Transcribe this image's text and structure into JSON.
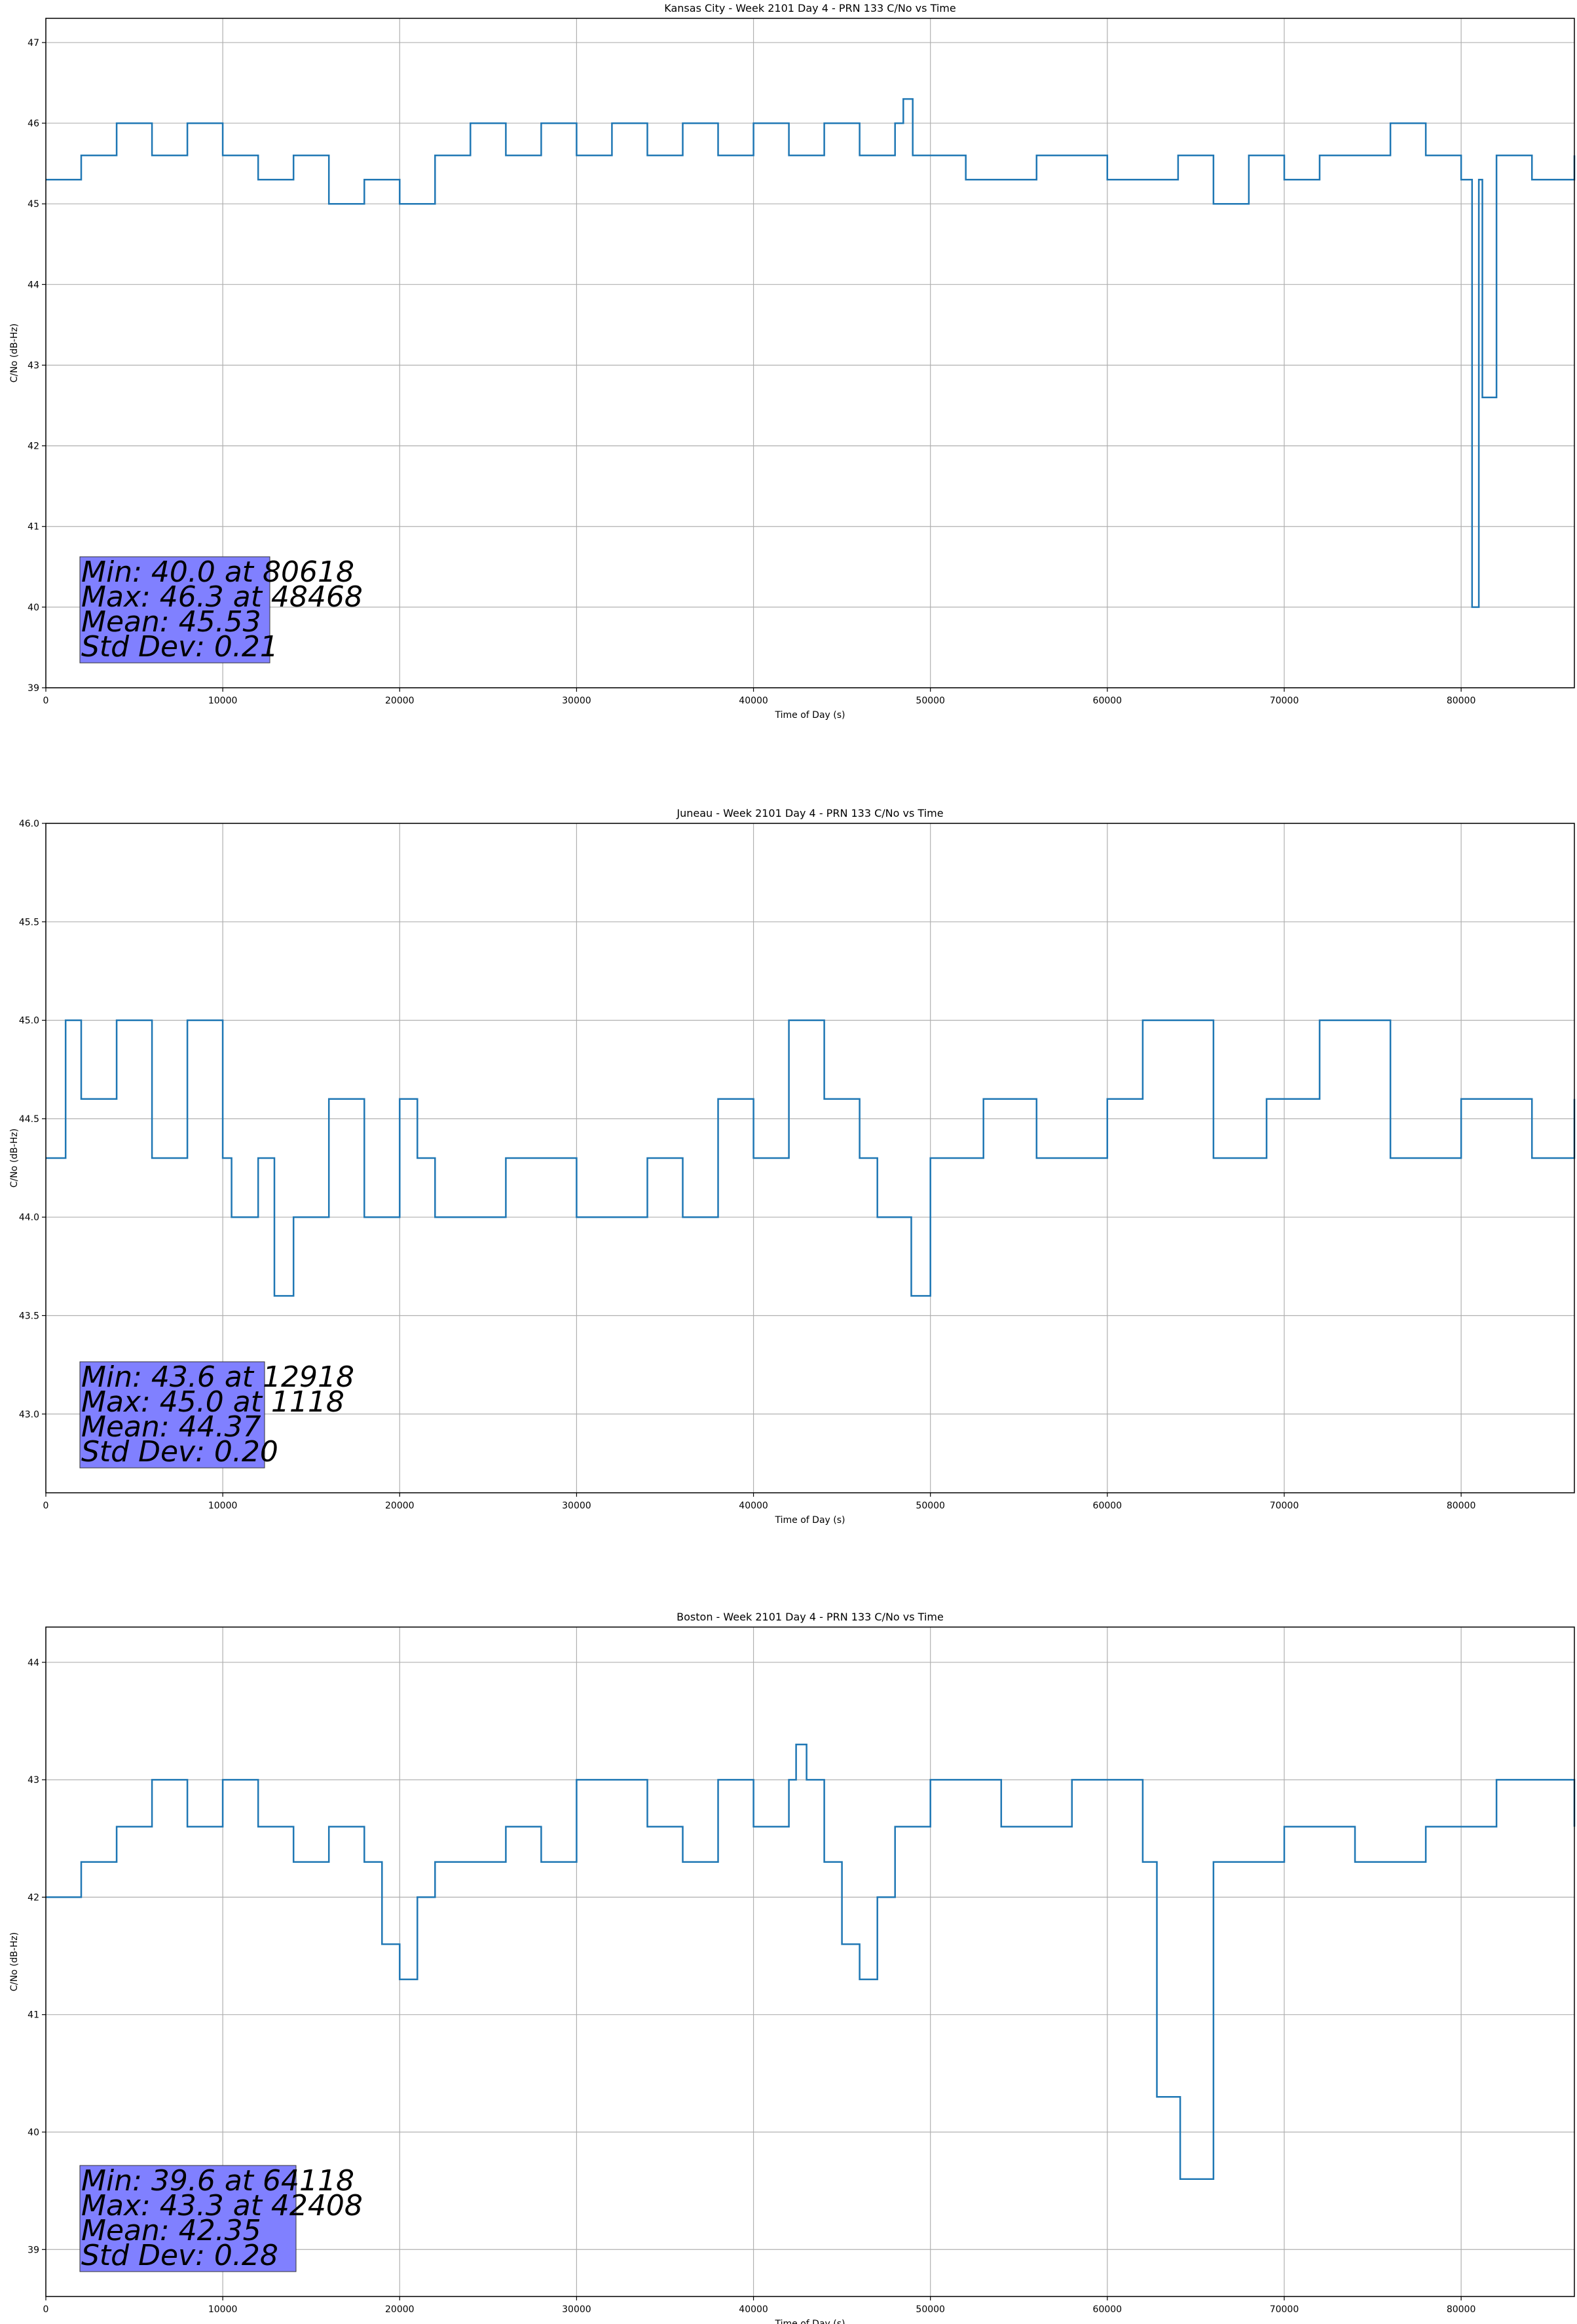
{
  "figure": {
    "panels": [
      {
        "title": "Kansas City - Week 2101 Day 4 - PRN 133 C/No vs Time",
        "xlabel": "Time of Day (s)",
        "ylabel": "C/No (dB-Hz)",
        "stats": [
          "Min: 40.0 at 80618",
          "Max: 46.3 at 48468",
          "Mean: 45.53",
          "Std Dev: 0.21"
        ]
      },
      {
        "title": "Juneau - Week 2101 Day 4 - PRN 133 C/No vs Time",
        "xlabel": "Time of Day (s)",
        "ylabel": "C/No (dB-Hz)",
        "stats": [
          "Min: 43.6 at 12918",
          "Max: 45.0 at 1118",
          "Mean: 44.37",
          "Std Dev: 0.20"
        ]
      },
      {
        "title": "Boston - Week 2101 Day 4 - PRN 133 C/No vs Time",
        "xlabel": "Time of Day (s)",
        "ylabel": "C/No (dB-Hz)",
        "stats": [
          "Min: 39.6 at 64118",
          "Max: 43.3 at 42408",
          "Mean: 42.35",
          "Std Dev: 0.28"
        ]
      }
    ]
  },
  "chart_data": [
    {
      "type": "line",
      "title": "Kansas City - Week 2101 Day 4 - PRN 133 C/No vs Time",
      "xlabel": "Time of Day (s)",
      "ylabel": "C/No (dB-Hz)",
      "xlim": [
        0,
        86400
      ],
      "ylim": [
        39,
        47.3
      ],
      "xticks": [
        0,
        10000,
        20000,
        30000,
        40000,
        50000,
        60000,
        70000,
        80000
      ],
      "yticks": [
        39,
        40,
        41,
        42,
        43,
        44,
        45,
        46,
        47
      ],
      "ytick_decimals": 0,
      "grid": true,
      "line_color": "#1f77b4",
      "stats_box_color": "#8080ff",
      "series": [
        {
          "x": [
            0,
            2000,
            4000,
            6000,
            8000,
            10000,
            12000,
            14000,
            16000,
            18000,
            20000,
            22000,
            24000,
            26000,
            28000,
            30000,
            32000,
            34000,
            36000,
            38000,
            40000,
            42000,
            44000,
            46000,
            48000,
            48468,
            49000,
            52000,
            56000,
            60000,
            64000,
            66000,
            68000,
            70000,
            72000,
            76000,
            78000,
            80000,
            80618,
            81000,
            81200,
            82000,
            84000,
            86400
          ],
          "y": [
            45.3,
            45.6,
            46.0,
            45.6,
            46.0,
            45.6,
            45.3,
            45.6,
            45.0,
            45.3,
            45.0,
            45.6,
            46.0,
            45.6,
            46.0,
            45.6,
            46.0,
            45.6,
            46.0,
            45.6,
            46.0,
            45.6,
            46.0,
            45.6,
            46.0,
            46.3,
            45.6,
            45.3,
            45.6,
            45.3,
            45.6,
            45.0,
            45.6,
            45.3,
            45.6,
            46.0,
            45.6,
            45.3,
            40.0,
            45.3,
            42.6,
            45.6,
            45.3,
            45.6
          ]
        }
      ]
    },
    {
      "type": "line",
      "title": "Juneau - Week 2101 Day 4 - PRN 133 C/No vs Time",
      "xlabel": "Time of Day (s)",
      "ylabel": "C/No (dB-Hz)",
      "xlim": [
        0,
        86400
      ],
      "ylim": [
        42.6,
        46.0
      ],
      "xticks": [
        0,
        10000,
        20000,
        30000,
        40000,
        50000,
        60000,
        70000,
        80000
      ],
      "yticks": [
        43.0,
        43.5,
        44.0,
        44.5,
        45.0,
        45.5,
        46.0
      ],
      "ytick_decimals": 1,
      "grid": true,
      "line_color": "#1f77b4",
      "stats_box_color": "#8080ff",
      "series": [
        {
          "x": [
            0,
            1118,
            2000,
            4000,
            6000,
            8000,
            10000,
            10500,
            12000,
            12918,
            14000,
            16000,
            18000,
            20000,
            21000,
            22000,
            26000,
            30000,
            34000,
            36000,
            38000,
            40000,
            42000,
            44000,
            46000,
            47000,
            48918,
            50000,
            53000,
            56000,
            60000,
            62000,
            66000,
            69000,
            72000,
            76000,
            80000,
            84000,
            86400
          ],
          "y": [
            44.3,
            45.0,
            44.6,
            45.0,
            44.3,
            45.0,
            44.3,
            44.0,
            44.3,
            43.6,
            44.0,
            44.6,
            44.0,
            44.6,
            44.3,
            44.0,
            44.3,
            44.0,
            44.3,
            44.0,
            44.6,
            44.3,
            45.0,
            44.6,
            44.3,
            44.0,
            43.6,
            44.3,
            44.6,
            44.3,
            44.6,
            45.0,
            44.3,
            44.6,
            45.0,
            44.3,
            44.6,
            44.3,
            44.6
          ]
        }
      ]
    },
    {
      "type": "line",
      "title": "Boston - Week 2101 Day 4 - PRN 133 C/No vs Time",
      "xlabel": "Time of Day (s)",
      "ylabel": "C/No (dB-Hz)",
      "xlim": [
        0,
        86400
      ],
      "ylim": [
        38.6,
        44.3
      ],
      "xticks": [
        0,
        10000,
        20000,
        30000,
        40000,
        50000,
        60000,
        70000,
        80000
      ],
      "yticks": [
        39,
        40,
        41,
        42,
        43,
        44
      ],
      "ytick_decimals": 0,
      "grid": true,
      "line_color": "#1f77b4",
      "stats_box_color": "#8080ff",
      "series": [
        {
          "x": [
            0,
            2000,
            4000,
            6000,
            8000,
            10000,
            12000,
            14000,
            16000,
            18000,
            19000,
            20000,
            21000,
            22000,
            26000,
            28000,
            30000,
            34000,
            36000,
            38000,
            40000,
            42000,
            42408,
            43000,
            44000,
            45000,
            46000,
            47000,
            48000,
            50000,
            54000,
            58000,
            62000,
            62800,
            64118,
            66000,
            70000,
            74000,
            78000,
            82000,
            86400
          ],
          "y": [
            42.0,
            42.3,
            42.6,
            43.0,
            42.6,
            43.0,
            42.6,
            42.3,
            42.6,
            42.3,
            41.6,
            41.3,
            42.0,
            42.3,
            42.6,
            42.3,
            43.0,
            42.6,
            42.3,
            43.0,
            42.6,
            43.0,
            43.3,
            43.0,
            42.3,
            41.6,
            41.3,
            42.0,
            42.6,
            43.0,
            42.6,
            43.0,
            42.3,
            40.3,
            39.6,
            42.3,
            42.6,
            42.3,
            42.6,
            43.0,
            42.6
          ]
        }
      ]
    }
  ]
}
